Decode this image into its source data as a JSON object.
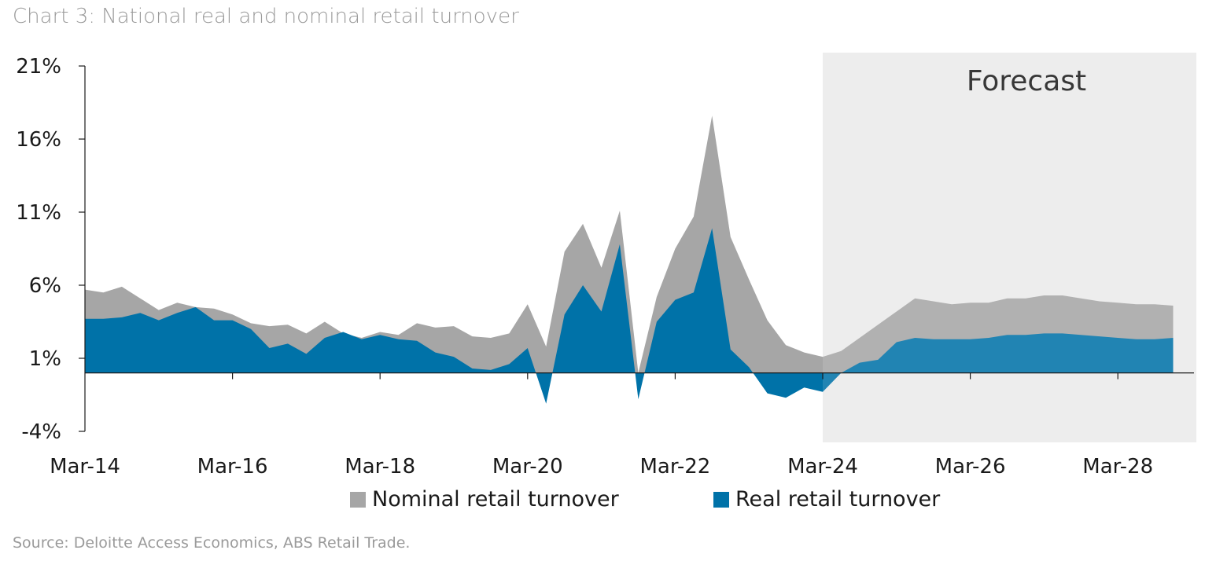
{
  "title": "Chart 3: National real and nominal retail turnover",
  "source": "Source: Deloitte Access Economics, ABS Retail Trade.",
  "forecast_label": "Forecast",
  "colors": {
    "nominal": "#a6a6a6",
    "real": "#0072a8",
    "forecast_shade": "#ebebeb",
    "axis": "#1a1a1a"
  },
  "chart_data": {
    "type": "area",
    "title": "Chart 3: National real and nominal retail turnover",
    "xlabel": "",
    "ylabel": "",
    "ylim": [
      -4,
      21
    ],
    "yticks": [
      -4,
      1,
      6,
      11,
      16,
      21
    ],
    "ytick_labels": [
      "-4%",
      "1%",
      "6%",
      "11%",
      "16%",
      "21%"
    ],
    "xtick_labels": [
      "Mar-14",
      "Mar-16",
      "Mar-18",
      "Mar-20",
      "Mar-22",
      "Mar-24",
      "Mar-26",
      "Mar-28"
    ],
    "legend_position": "bottom",
    "forecast_start": "Mar-24",
    "x": [
      "Mar-14",
      "Jun-14",
      "Sep-14",
      "Dec-14",
      "Mar-15",
      "Jun-15",
      "Sep-15",
      "Dec-15",
      "Mar-16",
      "Jun-16",
      "Sep-16",
      "Dec-16",
      "Mar-17",
      "Jun-17",
      "Sep-17",
      "Dec-17",
      "Mar-18",
      "Jun-18",
      "Sep-18",
      "Dec-18",
      "Mar-19",
      "Jun-19",
      "Sep-19",
      "Dec-19",
      "Mar-20",
      "Jun-20",
      "Sep-20",
      "Dec-20",
      "Mar-21",
      "Jun-21",
      "Sep-21",
      "Dec-21",
      "Mar-22",
      "Jun-22",
      "Sep-22",
      "Dec-22",
      "Mar-23",
      "Jun-23",
      "Sep-23",
      "Dec-23",
      "Mar-24",
      "Jun-24",
      "Sep-24",
      "Dec-24",
      "Mar-25",
      "Jun-25",
      "Sep-25",
      "Dec-25",
      "Mar-26",
      "Jun-26",
      "Sep-26",
      "Dec-26",
      "Mar-27",
      "Jun-27",
      "Sep-27",
      "Dec-27",
      "Mar-28",
      "Jun-28",
      "Sep-28",
      "Dec-28"
    ],
    "series": [
      {
        "name": "Nominal retail turnover",
        "values": [
          5.7,
          5.5,
          5.9,
          5.1,
          4.3,
          4.8,
          4.5,
          4.4,
          4.0,
          3.4,
          3.2,
          3.3,
          2.7,
          3.5,
          2.7,
          2.4,
          2.8,
          2.6,
          3.4,
          3.1,
          3.2,
          2.5,
          2.4,
          2.7,
          4.7,
          1.8,
          8.3,
          10.2,
          7.2,
          11.1,
          0.0,
          5.2,
          8.5,
          10.7,
          17.6,
          9.3,
          6.4,
          3.6,
          1.9,
          1.4,
          1.1,
          1.5,
          2.4,
          3.3,
          4.2,
          5.1,
          4.9,
          4.7,
          4.8,
          4.8,
          5.1,
          5.1,
          5.3,
          5.3,
          5.1,
          4.9,
          4.8,
          4.7,
          4.7,
          4.6
        ]
      },
      {
        "name": "Real retail turnover",
        "values": [
          3.7,
          3.7,
          3.8,
          4.1,
          3.6,
          4.1,
          4.5,
          3.6,
          3.6,
          3.0,
          1.7,
          2.0,
          1.3,
          2.4,
          2.8,
          2.3,
          2.6,
          2.3,
          2.2,
          1.4,
          1.1,
          0.3,
          0.2,
          0.6,
          1.7,
          -2.1,
          4.0,
          6.0,
          4.2,
          8.8,
          -1.8,
          3.5,
          5.0,
          5.5,
          9.9,
          1.6,
          0.4,
          -1.4,
          -1.7,
          -1.0,
          -1.3,
          0.0,
          0.7,
          0.9,
          2.1,
          2.4,
          2.3,
          2.3,
          2.3,
          2.4,
          2.6,
          2.6,
          2.7,
          2.7,
          2.6,
          2.5,
          2.4,
          2.3,
          2.3,
          2.4
        ]
      }
    ]
  }
}
